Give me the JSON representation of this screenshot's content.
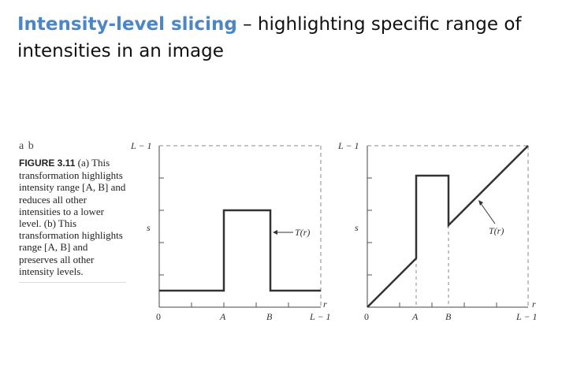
{
  "slide": {
    "title_highlight": "Intensity-level slicing",
    "title_rest": " – highlighting specific range of intensities in an image"
  },
  "caption": {
    "panels": "a b",
    "figure_label": "FIGURE 3.11",
    "text": " (a) This transformation highlights intensity range [A, B] and reduces all other intensities to a lower level. (b) This transformation highlights range [A, B] and preserves all other intensity levels."
  },
  "plots": {
    "a": {
      "y_top_label": "L − 1",
      "y_axis_label": "s",
      "x_axis_label": "r",
      "x_ticks": [
        "0",
        "A",
        "B",
        "L − 1"
      ],
      "curve_label": "T(r)"
    },
    "b": {
      "y_top_label": "L − 1",
      "y_axis_label": "s",
      "x_axis_label": "r",
      "x_ticks": [
        "0",
        "A",
        "B",
        "L − 1"
      ],
      "curve_label": "T(r)"
    }
  }
}
